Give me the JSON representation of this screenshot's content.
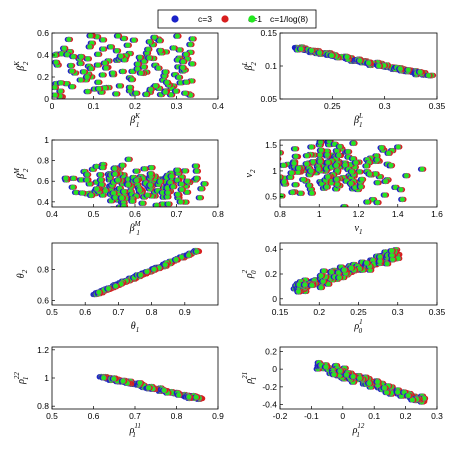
{
  "legend": {
    "items": [
      {
        "label": "c=3",
        "color": "#1a22c8"
      },
      {
        "label": "c=1",
        "color": "#d81e1e"
      },
      {
        "label": "c=1/log(8)",
        "color": "#22e81e"
      }
    ]
  },
  "chart_data": [
    {
      "type": "scatter",
      "panel": "beta-k",
      "xlabel": {
        "base": "β",
        "sub": "1",
        "sup": "K"
      },
      "ylabel": {
        "base": "β",
        "sub": "2",
        "sup": "K"
      },
      "xlim": [
        0,
        0.4
      ],
      "ylim": [
        0,
        0.6
      ],
      "xticks": [
        "0",
        "0.1",
        "0.2",
        "0.3",
        "0.4"
      ],
      "xtick_values": [
        0,
        0.1,
        0.2,
        0.3,
        0.4
      ],
      "yticks": [
        "0",
        "0.2",
        "0.4",
        "0.6"
      ],
      "ytick_values": [
        0,
        0.2,
        0.4,
        0.6
      ],
      "cloud": {
        "shape": "uniform",
        "xrange": [
          0.0,
          0.34
        ],
        "yrange": [
          0.02,
          0.58
        ],
        "n": 150,
        "seed": 11
      }
    },
    {
      "type": "scatter",
      "panel": "lambda",
      "xlabel": {
        "base": "β",
        "sub": "1",
        "sup": "L"
      },
      "ylabel": {
        "base": "β",
        "sub": "2",
        "sup": "L"
      },
      "xlim": [
        0.2,
        0.35
      ],
      "ylim": [
        0.05,
        0.15
      ],
      "xticks": [
        "0.25",
        "0.3",
        "0.35"
      ],
      "xtick_values": [
        0.25,
        0.3,
        0.35
      ],
      "yticks": [
        "0.05",
        "0.1",
        "0.15"
      ],
      "ytick_values": [
        0.05,
        0.1,
        0.15
      ],
      "cloud": {
        "shape": "band",
        "x0": 0.215,
        "x1": 0.345,
        "y0": 0.128,
        "y1": 0.085,
        "spread": 0.012,
        "n": 260,
        "seed": 23
      }
    },
    {
      "type": "scatter",
      "panel": "beta-m",
      "xlabel": {
        "base": "β",
        "sub": "1",
        "sup": "M"
      },
      "ylabel": {
        "base": "β",
        "sub": "2",
        "sup": "M"
      },
      "xlim": [
        0.4,
        0.8
      ],
      "ylim": [
        0.35,
        1.0
      ],
      "xticks": [
        "0.4",
        "0.5",
        "0.6",
        "0.7",
        "0.8"
      ],
      "xtick_values": [
        0.4,
        0.5,
        0.6,
        0.7,
        0.8
      ],
      "yticks": [
        "0.4",
        "0.6",
        "0.8",
        "1"
      ],
      "ytick_values": [
        0.4,
        0.6,
        0.8,
        1.0
      ],
      "cloud": {
        "shape": "blob",
        "cx": 0.6,
        "cy": 0.57,
        "sx": 0.07,
        "sy": 0.1,
        "n": 200,
        "seed": 37
      }
    },
    {
      "type": "scatter",
      "panel": "nu",
      "xlabel": {
        "base": "ν",
        "sub": "1",
        "sup": ""
      },
      "ylabel": {
        "base": "ν",
        "sub": "2",
        "sup": ""
      },
      "xlim": [
        0.8,
        1.6
      ],
      "ylim": [
        0.3,
        1.6
      ],
      "xticks": [
        "0.8",
        "1",
        "1.2",
        "1.4",
        "1.6"
      ],
      "xtick_values": [
        0.8,
        1.0,
        1.2,
        1.4,
        1.6
      ],
      "yticks": [
        "0.5",
        "1",
        "1.5"
      ],
      "ytick_values": [
        0.5,
        1.0,
        1.5
      ],
      "cloud": {
        "shape": "blob",
        "cx": 1.08,
        "cy": 1.05,
        "sx": 0.17,
        "sy": 0.26,
        "n": 200,
        "seed": 41
      }
    },
    {
      "type": "scatter",
      "panel": "theta",
      "xlabel": {
        "base": "θ",
        "sub": "1",
        "sup": ""
      },
      "ylabel": {
        "base": "θ",
        "sub": "2",
        "sup": ""
      },
      "xlim": [
        0.5,
        1.0
      ],
      "ylim": [
        0.57,
        0.97
      ],
      "xticks": [
        "0.5",
        "0.6",
        "0.7",
        "0.8",
        "0.9"
      ],
      "xtick_values": [
        0.5,
        0.6,
        0.7,
        0.8,
        0.9
      ],
      "yticks": [
        "0.6",
        "0.8"
      ],
      "ytick_values": [
        0.6,
        0.8
      ],
      "cloud": {
        "shape": "band",
        "x0": 0.62,
        "x1": 0.94,
        "y0": 0.63,
        "y1": 0.92,
        "spread": 0.012,
        "n": 170,
        "seed": 53
      }
    },
    {
      "type": "scatter",
      "panel": "rho-0",
      "xlabel": {
        "base": "ρ",
        "sub": "0",
        "sup": "1"
      },
      "ylabel": {
        "base": "ρ",
        "sub": "0",
        "sup": "2"
      },
      "xlim": [
        0.15,
        0.35
      ],
      "ylim": [
        -0.05,
        0.45
      ],
      "xticks": [
        "0.15",
        "0.2",
        "0.25",
        "0.3",
        "0.35"
      ],
      "xtick_values": [
        0.15,
        0.2,
        0.25,
        0.3,
        0.35
      ],
      "yticks": [
        "0",
        "0.2",
        "0.4"
      ],
      "ytick_values": [
        0,
        0.2,
        0.4
      ],
      "cloud": {
        "shape": "band",
        "x0": 0.17,
        "x1": 0.3,
        "y0": 0.08,
        "y1": 0.36,
        "spread": 0.06,
        "n": 230,
        "seed": 67
      }
    },
    {
      "type": "scatter",
      "panel": "rho-11-22",
      "xlabel": {
        "base": "ρ",
        "sub": "1",
        "sup": "11"
      },
      "ylabel": {
        "base": "ρ",
        "sub": "1",
        "sup": "22"
      },
      "xlim": [
        0.5,
        0.9
      ],
      "ylim": [
        0.78,
        1.22
      ],
      "xticks": [
        "0.5",
        "0.6",
        "0.7",
        "0.8",
        "0.9"
      ],
      "xtick_values": [
        0.5,
        0.6,
        0.7,
        0.8,
        0.9
      ],
      "yticks": [
        "0.8",
        "1",
        "1.2"
      ],
      "ytick_values": [
        0.8,
        1.0,
        1.2
      ],
      "cloud": {
        "shape": "band",
        "x0": 0.62,
        "x1": 0.86,
        "y0": 1.01,
        "y1": 0.85,
        "spread": 0.03,
        "n": 170,
        "seed": 71
      }
    },
    {
      "type": "scatter",
      "panel": "rho-12-21",
      "xlabel": {
        "base": "ρ",
        "sub": "1",
        "sup": "12"
      },
      "ylabel": {
        "base": "ρ",
        "sub": "1",
        "sup": "21"
      },
      "xlim": [
        -0.2,
        0.3
      ],
      "ylim": [
        -0.45,
        0.25
      ],
      "xticks": [
        "-0.2",
        "-0.1",
        "0",
        "0.1",
        "0.2",
        "0.3"
      ],
      "xtick_values": [
        -0.2,
        -0.1,
        0,
        0.1,
        0.2,
        0.3
      ],
      "yticks": [
        "-0.4",
        "-0.2",
        "0",
        "0.2"
      ],
      "ytick_values": [
        -0.4,
        -0.2,
        0,
        0.2
      ],
      "cloud": {
        "shape": "band",
        "x0": -0.08,
        "x1": 0.26,
        "y0": 0.05,
        "y1": -0.36,
        "spread": 0.05,
        "n": 170,
        "seed": 89
      }
    }
  ]
}
